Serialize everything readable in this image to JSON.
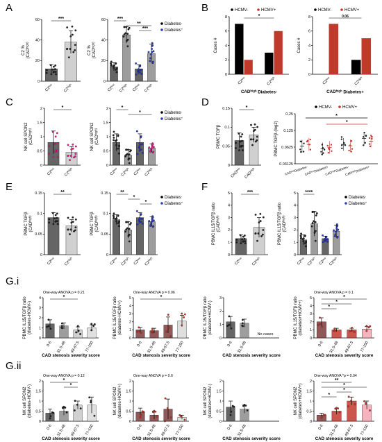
{
  "palette": {
    "dark_bar": "#4a4a4a",
    "mid_bar": "#8c8c8c",
    "light_bar": "#c8c8c8",
    "pale_bar": "#d9d9d9",
    "brown_bar": "#7d3b3b",
    "hcmv_pos": "#c0392b",
    "diabetes_pos": "#2e3db8",
    "magenta": "#e0218a",
    "pink": "#f4a6b2"
  },
  "panels": {
    "A": "A",
    "B": "B",
    "C": "C",
    "D": "D",
    "E": "E",
    "F": "F",
    "Gi": "G.i",
    "Gii": "G.ii"
  },
  "chart_data": [
    {
      "id": "A1",
      "type": "bar",
      "ylabel": [
        "C2 %",
        "(CAD^high)"
      ],
      "categories": [
        "C2^low",
        "C2^high"
      ],
      "values": [
        12,
        38
      ],
      "errors": [
        4,
        11
      ],
      "ylim": [
        0,
        60
      ],
      "yticks": [
        0,
        20,
        40,
        60
      ],
      "significance": [
        {
          "from": 0,
          "to": 1,
          "label": "***"
        }
      ]
    },
    {
      "id": "A2",
      "type": "bar",
      "ylabel": [
        "C2 %",
        "(CAD^high)"
      ],
      "categories": [
        "C2^low",
        "C2^high",
        "C2^low",
        "C2^high"
      ],
      "values": [
        14,
        45,
        12,
        27
      ],
      "errors": [
        4,
        8,
        4,
        9
      ],
      "ylim": [
        0,
        60
      ],
      "yticks": [
        0,
        20,
        40,
        60
      ],
      "legend": [
        "Diabetes-",
        "Diabetes+"
      ],
      "significance": [
        {
          "from": 0,
          "to": 1,
          "label": "***"
        },
        {
          "from": 1,
          "to": 3,
          "label": "**"
        },
        {
          "from": 2,
          "to": 3,
          "label": "***"
        }
      ]
    },
    {
      "id": "B1",
      "type": "bar",
      "ylabel": [
        "Cases #"
      ],
      "xlabel": "CAD^high Diabetes-",
      "categories": [
        "C2^low",
        "C2^high"
      ],
      "series": [
        {
          "name": "HCMV-",
          "values": [
            7,
            3
          ]
        },
        {
          "name": "HCMV+",
          "values": [
            2,
            6
          ]
        }
      ],
      "ylim": [
        0,
        8
      ],
      "yticks": [
        0,
        2,
        4,
        6,
        8
      ],
      "significance": [
        {
          "from": 0,
          "to": 1,
          "label": "*"
        }
      ]
    },
    {
      "id": "B2",
      "type": "bar",
      "ylabel": [
        "Cases #"
      ],
      "xlabel": "CAD^high Diabetes+",
      "categories": [
        "C2^low",
        "C2^high"
      ],
      "series": [
        {
          "name": "HCMV-",
          "values": [
            0,
            2
          ]
        },
        {
          "name": "HCMV+",
          "values": [
            7,
            5
          ]
        }
      ],
      "ylim": [
        0,
        8
      ],
      "yticks": [
        0,
        2,
        4,
        6,
        8
      ],
      "significance": [
        {
          "from": 0,
          "to": 1,
          "label": "0.06"
        }
      ]
    },
    {
      "id": "C1",
      "type": "bar",
      "ylabel": [
        "NK cell SPON2",
        "(CAD^high)"
      ],
      "categories": [
        "C2^low",
        "C2^high"
      ],
      "values": [
        0.8,
        0.45
      ],
      "errors": [
        0.4,
        0.2
      ],
      "ylim": [
        0,
        2.0
      ],
      "yticks": [
        0,
        0.5,
        1.0,
        1.5,
        2.0
      ],
      "significance": [
        {
          "from": 0,
          "to": 1,
          "label": "*"
        }
      ]
    },
    {
      "id": "C2",
      "type": "bar",
      "ylabel": [
        "NK cell SPON2",
        "(CAD^high)"
      ],
      "categories": [
        "C2^low",
        "C2^high",
        "C2^low",
        "C2^high"
      ],
      "values": [
        0.8,
        0.35,
        0.8,
        0.6
      ],
      "errors": [
        0.3,
        0.2,
        0.3,
        0.15
      ],
      "ylim": [
        0,
        2.0
      ],
      "yticks": [
        0,
        0.5,
        1.0,
        1.5,
        2.0
      ],
      "legend": [
        "Diabetes-",
        "Diabetes+"
      ],
      "significance": [
        {
          "from": 0,
          "to": 1,
          "label": "*"
        },
        {
          "from": 1,
          "to": 3,
          "label": "*"
        }
      ]
    },
    {
      "id": "D1",
      "type": "bar",
      "ylabel": [
        "PBMC TGFβ"
      ],
      "categories": [
        "CAD^low",
        "CAD^high"
      ],
      "values": [
        0.065,
        0.08
      ],
      "errors": [
        0.02,
        0.02
      ],
      "ylim": [
        0,
        0.15
      ],
      "yticks": [
        0,
        0.05,
        0.1,
        0.15
      ],
      "significance": [
        {
          "from": 0,
          "to": 1,
          "label": "*"
        }
      ]
    },
    {
      "id": "D2",
      "type": "scatter",
      "ylabel": [
        "PBMC TGFβ (log2)"
      ],
      "categories": [
        "CAD^low Diabetes-",
        "CAD^low Diabetes+",
        "CAD^high Diabetes-",
        "CAD^high Diabetes+"
      ],
      "series": [
        {
          "name": "HCMV-",
          "values": [
            0.065,
            0.058,
            0.07,
            0.09
          ]
        },
        {
          "name": "HCMV+",
          "values": [
            0.07,
            0.062,
            0.066,
            0.08
          ]
        }
      ],
      "yticks": [
        0.03125,
        0.0625,
        0.125,
        0.25
      ],
      "significance": [
        {
          "from": 0,
          "to": 3,
          "label": "*"
        },
        {
          "from": 1,
          "to": 3,
          "label": "*"
        }
      ]
    },
    {
      "id": "E1",
      "type": "bar",
      "ylabel": [
        "PBMC TGFβ",
        "(CAD^high)"
      ],
      "categories": [
        "C2^low",
        "C2^high"
      ],
      "values": [
        0.09,
        0.07
      ],
      "errors": [
        0.012,
        0.015
      ],
      "ylim": [
        0,
        0.15
      ],
      "yticks": [
        0,
        0.05,
        0.1,
        0.15
      ],
      "significance": [
        {
          "from": 0,
          "to": 1,
          "label": "**"
        }
      ]
    },
    {
      "id": "E2",
      "type": "bar",
      "ylabel": [
        "PBMC TGFβ",
        "(CAD^high)"
      ],
      "categories": [
        "C2^low",
        "C2^high",
        "C2^low",
        "C2^high"
      ],
      "values": [
        0.085,
        0.06,
        0.09,
        0.08
      ],
      "errors": [
        0.012,
        0.02,
        0.012,
        0.012
      ],
      "ylim": [
        0,
        0.15
      ],
      "yticks": [
        0,
        0.05,
        0.1,
        0.15
      ],
      "legend": [
        "Diabetes-",
        "Diabetes+"
      ],
      "significance": [
        {
          "from": 0,
          "to": 1,
          "label": "**"
        },
        {
          "from": 1,
          "to": 2,
          "label": "*"
        },
        {
          "from": 2,
          "to": 3,
          "label": "*"
        }
      ]
    },
    {
      "id": "F1",
      "type": "bar",
      "ylabel": [
        "PBMC IL15/TGFβ ratio",
        "(CAD^high)"
      ],
      "categories": [
        "C2^low",
        "C2^high"
      ],
      "values": [
        1.3,
        2.2
      ],
      "errors": [
        0.3,
        0.8
      ],
      "ylim": [
        0,
        5
      ],
      "yticks": [
        0,
        1,
        2,
        3,
        4,
        5
      ],
      "significance": [
        {
          "from": 0,
          "to": 1,
          "label": "***"
        }
      ]
    },
    {
      "id": "F2",
      "type": "bar",
      "ylabel": [
        "PBMC IL15/TGFβ ratio",
        "(CAD^high)"
      ],
      "categories": [
        "C2^low",
        "C2^high",
        "C2^low",
        "C2^high"
      ],
      "values": [
        1.2,
        2.5,
        1.3,
        1.9
      ],
      "errors": [
        0.4,
        1.0,
        0.2,
        0.5
      ],
      "ylim": [
        0,
        5
      ],
      "yticks": [
        0,
        1,
        2,
        3,
        4,
        5
      ],
      "legend": [
        "Diabetes-",
        "Diabetes+"
      ],
      "significance": [
        {
          "from": 0,
          "to": 1,
          "label": "****"
        }
      ]
    },
    {
      "id": "Gi1",
      "type": "bar",
      "title": "One-way ANOVA  p = 0.21",
      "ylabel": [
        "PBMC IL15/TGFβ ratio",
        "(diabetes-HCMV-)"
      ],
      "xlabel": "CAD stenosis severity score",
      "categories": [
        "0-6",
        "31.5-48",
        "49-67.5",
        "77-150"
      ],
      "values": [
        1.4,
        1.2,
        0.8,
        1.0
      ],
      "errors": [
        0.4,
        0.3,
        0.3,
        0.3
      ],
      "ylim": [
        0,
        4
      ],
      "yticks": [
        0,
        1,
        2,
        3,
        4
      ],
      "significance": [
        {
          "from": 0,
          "to": 2,
          "label": "*"
        }
      ]
    },
    {
      "id": "Gi2",
      "type": "bar",
      "title": "One-way ANOVA  p = 0.06",
      "ylabel": [
        "PBMC IL15/TGFβ ratio",
        "(diabetes-HCMV+)"
      ],
      "xlabel": "CAD stenosis severity score",
      "categories": [
        "0-6",
        "31.5-48",
        "49-67.5",
        "77-150"
      ],
      "values": [
        1.0,
        0.9,
        1.6,
        2.1
      ],
      "errors": [
        0.3,
        0.3,
        1.0,
        0.7
      ],
      "ylim": [
        0,
        5
      ],
      "yticks": [
        0,
        1,
        2,
        3,
        4,
        5
      ],
      "significance": [
        {
          "from": 0,
          "to": 3,
          "label": "*"
        }
      ]
    },
    {
      "id": "Gi3",
      "type": "bar",
      "ylabel": [
        "PBMC IL15/TGFβ ratio",
        "(diabetes+HCMV-)"
      ],
      "xlabel": "CAD stenosis severity score",
      "categories": [
        "0-6",
        "31.5-48",
        "49-67.5",
        "77-150"
      ],
      "values": [
        1.2,
        1.1,
        null,
        null
      ],
      "errors": [
        0.4,
        0.3,
        null,
        null
      ],
      "ylim": [
        0,
        3
      ],
      "yticks": [
        0,
        1,
        2,
        3
      ],
      "annotation": "No cases"
    },
    {
      "id": "Gi4",
      "type": "bar",
      "title": "One-way ANOVA  p = 0.1",
      "ylabel": [
        "PBMC IL15/TGFβ ratio",
        "(diabetes+HCMV+)"
      ],
      "xlabel": "CAD stenosis severity score",
      "categories": [
        "0-6",
        "31.5-48",
        "49-67.5",
        "77-150"
      ],
      "values": [
        2.0,
        1.0,
        1.0,
        1.1
      ],
      "errors": [
        0.5,
        0.2,
        0.2,
        0.3
      ],
      "ylim": [
        0,
        5
      ],
      "yticks": [
        0,
        1,
        2,
        3,
        4,
        5
      ],
      "significance": [
        {
          "from": 0,
          "to": 3,
          "label": "*"
        },
        {
          "from": 0,
          "to": 2,
          "label": "*"
        },
        {
          "from": 0,
          "to": 1,
          "label": "*"
        }
      ]
    },
    {
      "id": "Gii1",
      "type": "bar",
      "title": "One-way ANOVA  p = 0.12",
      "ylabel": [
        "NK cell SPON2",
        "(diabetes-HCMV-)"
      ],
      "xlabel": "CAD stenosis severity score",
      "categories": [
        "0-6",
        "31.5-48",
        "49-67.5",
        "77-150"
      ],
      "values": [
        0.4,
        0.5,
        0.8,
        0.8
      ],
      "errors": [
        0.2,
        0.2,
        0.2,
        0.4
      ],
      "ylim": [
        0,
        2.0
      ],
      "yticks": [
        0,
        0.5,
        1.0,
        1.5,
        2.0
      ],
      "significance": [
        {
          "from": 0,
          "to": 2,
          "label": "*"
        },
        {
          "from": 1,
          "to": 2,
          "label": "*"
        }
      ]
    },
    {
      "id": "Gii2",
      "type": "bar",
      "title": "One-way ANOVA  p = 0.6",
      "ylabel": [
        "NK cell SPON2",
        "(diabetes-HCMV+)"
      ],
      "xlabel": "CAD stenosis severity score",
      "categories": [
        "0-6",
        "31.5-48",
        "49-67.5",
        "77-150"
      ],
      "values": [
        0.45,
        0.3,
        0.6,
        0.2
      ],
      "errors": [
        0.2,
        0.2,
        0.5,
        0.1
      ],
      "ylim": [
        0,
        2.0
      ],
      "yticks": [
        0,
        0.5,
        1.0,
        1.5,
        2.0
      ]
    },
    {
      "id": "Gii3",
      "type": "bar",
      "ylabel": [
        "NK cell SPON2",
        "(diabetes+HCMV-)"
      ],
      "xlabel": "CAD stenosis severity score",
      "categories": [
        "0-6",
        "31.5-48",
        "49-67.5",
        "77-150"
      ],
      "values": [
        0.7,
        0.6,
        null,
        null
      ],
      "errors": [
        0.3,
        0.2,
        null,
        null
      ],
      "ylim": [
        0,
        2.0
      ],
      "yticks": [
        0,
        0.5,
        1.0,
        1.5,
        2.0
      ]
    },
    {
      "id": "Gii4",
      "type": "bar",
      "title": "One-way ANOVA  *p = 0.04",
      "ylabel": [
        "NK cell SPON2",
        "(diabetes+HCMV+)"
      ],
      "xlabel": "CAD stenosis severity score",
      "categories": [
        "0-6",
        "31.5-48",
        "49-67.5",
        "77-150"
      ],
      "values": [
        0.3,
        0.5,
        1.0,
        0.8
      ],
      "errors": [
        0.1,
        0.15,
        0.2,
        0.2
      ],
      "ylim": [
        0,
        2.0
      ],
      "yticks": [
        0,
        0.5,
        1.0,
        1.5,
        2.0
      ],
      "significance": [
        {
          "from": 0,
          "to": 2,
          "label": "**"
        },
        {
          "from": 0,
          "to": 3,
          "label": "*"
        },
        {
          "from": 1,
          "to": 2,
          "label": "*"
        },
        {
          "from": 0,
          "to": 1,
          "label": "*"
        }
      ]
    }
  ]
}
